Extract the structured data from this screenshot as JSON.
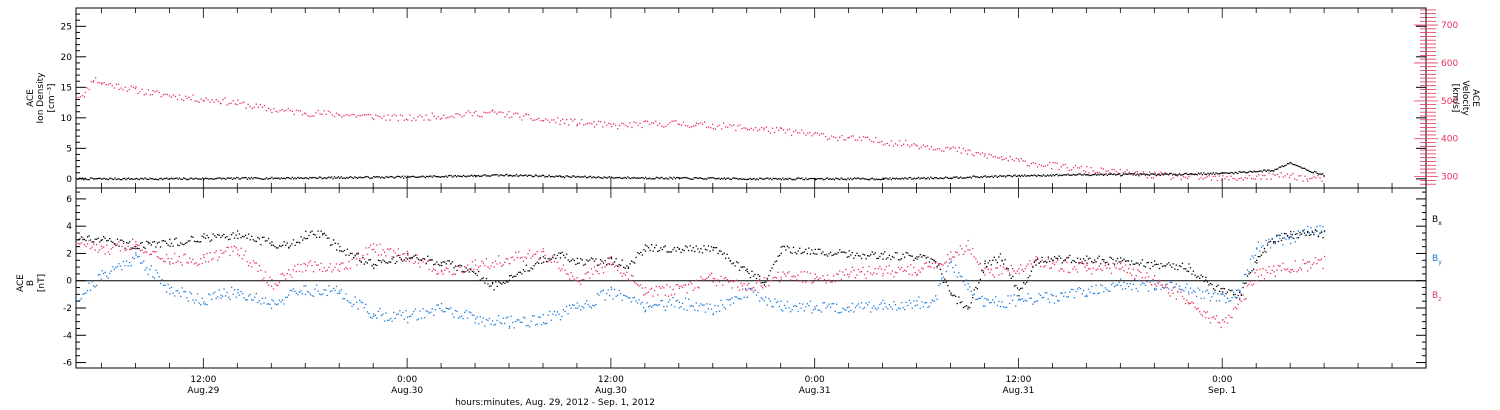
{
  "colors": {
    "black": "#000000",
    "red": "#e8315c",
    "blue": "#1a7ad9"
  },
  "x_axis": {
    "footer": "hours:minutes, Aug. 29, 2012 - Sep.  1, 2012",
    "ticks": [
      {
        "x": 12,
        "time": "12:00",
        "date": "Aug.29"
      },
      {
        "x": 24,
        "time": "0:00",
        "date": "Aug.30"
      },
      {
        "x": 36,
        "time": "12:00",
        "date": "Aug.30"
      },
      {
        "x": 48,
        "time": "0:00",
        "date": "Aug.31"
      },
      {
        "x": 60,
        "time": "12:00",
        "date": "Aug.31"
      },
      {
        "x": 72,
        "time": "0:00",
        "date": "Sep. 1"
      }
    ]
  },
  "chart_data": [
    {
      "type": "scatter",
      "x_unit": "hours since 2012-08-29 00:00",
      "xlim": [
        4.5,
        84
      ],
      "left_axis": {
        "label_lines": [
          "ACE",
          "Ion Density",
          "[cm⁻³]"
        ],
        "ylim": [
          -1.5,
          28
        ],
        "ticks": [
          0,
          5,
          10,
          15,
          20,
          25
        ],
        "color": "#000000"
      },
      "right_axis": {
        "label_lines": [
          "ACE",
          "Velocity",
          "[km/s]"
        ],
        "ylim": [
          270,
          745
        ],
        "ticks": [
          300,
          400,
          500,
          600,
          700
        ],
        "color": "#e8315c"
      },
      "series": [
        {
          "name": "Ion Density",
          "axis": "left",
          "color": "#000000",
          "points": [
            [
              4.6,
              0.1
            ],
            [
              10,
              0.1
            ],
            [
              16,
              0.2
            ],
            [
              20,
              0.3
            ],
            [
              24,
              0.4
            ],
            [
              28,
              0.6
            ],
            [
              30,
              0.7
            ],
            [
              33,
              0.5
            ],
            [
              36,
              0.3
            ],
            [
              40,
              0.2
            ],
            [
              44,
              0.1
            ],
            [
              48,
              0.1
            ],
            [
              52,
              0.1
            ],
            [
              56,
              0.3
            ],
            [
              60,
              0.6
            ],
            [
              64,
              0.8
            ],
            [
              68,
              0.8
            ],
            [
              72,
              1.0
            ],
            [
              75,
              1.5
            ],
            [
              76,
              2.8
            ],
            [
              77,
              1.5
            ],
            [
              78,
              0.7
            ]
          ]
        },
        {
          "name": "Velocity",
          "axis": "right",
          "color": "#e8315c",
          "points": [
            [
              4.6,
              515
            ],
            [
              5,
              520
            ],
            [
              5.5,
              560
            ],
            [
              6,
              548
            ],
            [
              7,
              540
            ],
            [
              8,
              530
            ],
            [
              9,
              522
            ],
            [
              11,
              510
            ],
            [
              12,
              505
            ],
            [
              13,
              502
            ],
            [
              14,
              495
            ],
            [
              16,
              478
            ],
            [
              18,
              470
            ],
            [
              20,
              466
            ],
            [
              22,
              460
            ],
            [
              24,
              455
            ],
            [
              26,
              462
            ],
            [
              28,
              468
            ],
            [
              29,
              470
            ],
            [
              30,
              465
            ],
            [
              31,
              458
            ],
            [
              32,
              450
            ],
            [
              33,
              448
            ],
            [
              34,
              444
            ],
            [
              35,
              440
            ],
            [
              36,
              435
            ],
            [
              38,
              440
            ],
            [
              40,
              442
            ],
            [
              41,
              438
            ],
            [
              42,
              436
            ],
            [
              44,
              430
            ],
            [
              45,
              426
            ],
            [
              46,
              422
            ],
            [
              48,
              412
            ],
            [
              50,
              402
            ],
            [
              52,
              394
            ],
            [
              54,
              385
            ],
            [
              56,
              375
            ],
            [
              57,
              365
            ],
            [
              58,
              358
            ],
            [
              59,
              350
            ],
            [
              60,
              342
            ],
            [
              62,
              330
            ],
            [
              64,
              320
            ],
            [
              65,
              315
            ],
            [
              66,
              312
            ],
            [
              68,
              305
            ],
            [
              70,
              300
            ],
            [
              72,
              296
            ],
            [
              74,
              300
            ],
            [
              76,
              305
            ],
            [
              77,
              295
            ],
            [
              78,
              297
            ]
          ]
        }
      ]
    },
    {
      "type": "scatter",
      "x_unit": "hours since 2012-08-29 00:00",
      "xlim": [
        4.5,
        84
      ],
      "axis": {
        "label_lines": [
          "ACE",
          "B",
          "[nT]"
        ],
        "ylim": [
          -6.4,
          6.8
        ],
        "ticks": [
          -6,
          -4,
          -2,
          0,
          2,
          4,
          6
        ]
      },
      "legend": [
        {
          "main": "B",
          "sub": "x",
          "color": "#000000"
        },
        {
          "main": "B",
          "sub": "y",
          "color": "#1a7ad9"
        },
        {
          "main": "B",
          "sub": "z",
          "color": "#e8315c"
        }
      ],
      "series": [
        {
          "name": "Bx",
          "color": "#000000",
          "points": [
            [
              4.6,
              3.2
            ],
            [
              6,
              3.0
            ],
            [
              8,
              2.6
            ],
            [
              10,
              2.8
            ],
            [
              12,
              3.2
            ],
            [
              14,
              3.4
            ],
            [
              16,
              2.8
            ],
            [
              17,
              2.6
            ],
            [
              18,
              3.4
            ],
            [
              19,
              3.4
            ],
            [
              20,
              2.4
            ],
            [
              22,
              1.2
            ],
            [
              24,
              1.8
            ],
            [
              26,
              1.4
            ],
            [
              28,
              0.6
            ],
            [
              29,
              -0.4
            ],
            [
              30,
              0.2
            ],
            [
              32,
              1.6
            ],
            [
              33,
              2.0
            ],
            [
              34,
              1.4
            ],
            [
              36,
              1.5
            ],
            [
              37,
              1.2
            ],
            [
              38,
              2.4
            ],
            [
              40,
              2.4
            ],
            [
              42,
              2.3
            ],
            [
              43,
              1.6
            ],
            [
              44,
              0.6
            ],
            [
              45,
              0.0
            ],
            [
              46,
              2.3
            ],
            [
              48,
              2.2
            ],
            [
              50,
              2.0
            ],
            [
              52,
              1.9
            ],
            [
              54,
              1.8
            ],
            [
              55,
              1.6
            ],
            [
              56,
              -1.0
            ],
            [
              57,
              -2.0
            ],
            [
              58,
              1.2
            ],
            [
              59,
              1.8
            ],
            [
              60,
              -0.8
            ],
            [
              61,
              1.4
            ],
            [
              62,
              1.6
            ],
            [
              64,
              1.6
            ],
            [
              66,
              1.5
            ],
            [
              68,
              1.2
            ],
            [
              70,
              1.0
            ],
            [
              71,
              0.0
            ],
            [
              72,
              -0.8
            ],
            [
              73,
              -1.0
            ],
            [
              74,
              1.6
            ],
            [
              75,
              3.0
            ],
            [
              76,
              3.4
            ],
            [
              77,
              3.6
            ],
            [
              78,
              3.4
            ]
          ]
        },
        {
          "name": "By",
          "color": "#1a7ad9",
          "points": [
            [
              4.6,
              -1.2
            ],
            [
              6,
              0.4
            ],
            [
              8,
              1.8
            ],
            [
              10,
              -0.6
            ],
            [
              12,
              -1.4
            ],
            [
              13,
              -1.0
            ],
            [
              14,
              -0.8
            ],
            [
              16,
              -1.6
            ],
            [
              18,
              -0.6
            ],
            [
              20,
              -0.8
            ],
            [
              22,
              -2.4
            ],
            [
              24,
              -2.6
            ],
            [
              26,
              -2.0
            ],
            [
              28,
              -2.8
            ],
            [
              30,
              -3.0
            ],
            [
              32,
              -2.8
            ],
            [
              34,
              -2.0
            ],
            [
              36,
              -0.8
            ],
            [
              38,
              -1.8
            ],
            [
              40,
              -1.6
            ],
            [
              42,
              -2.0
            ],
            [
              43,
              -1.4
            ],
            [
              44,
              -0.8
            ],
            [
              46,
              -1.8
            ],
            [
              48,
              -1.9
            ],
            [
              50,
              -1.9
            ],
            [
              52,
              -1.8
            ],
            [
              54,
              -1.6
            ],
            [
              55,
              -1.4
            ],
            [
              56,
              1.2
            ],
            [
              57,
              -0.4
            ],
            [
              58,
              -1.6
            ],
            [
              60,
              -1.4
            ],
            [
              62,
              -1.2
            ],
            [
              64,
              -0.8
            ],
            [
              66,
              -0.2
            ],
            [
              68,
              -0.4
            ],
            [
              70,
              -0.6
            ],
            [
              72,
              -1.2
            ],
            [
              73,
              -0.8
            ],
            [
              74,
              2.4
            ],
            [
              75,
              3.0
            ],
            [
              76,
              3.2
            ],
            [
              77,
              3.6
            ],
            [
              78,
              3.8
            ]
          ]
        },
        {
          "name": "Bz",
          "color": "#e8315c",
          "points": [
            [
              4.6,
              3.0
            ],
            [
              6,
              2.2
            ],
            [
              8,
              2.8
            ],
            [
              10,
              1.6
            ],
            [
              12,
              1.6
            ],
            [
              14,
              2.4
            ],
            [
              16,
              -0.2
            ],
            [
              18,
              1.2
            ],
            [
              20,
              1.0
            ],
            [
              21,
              1.6
            ],
            [
              22,
              2.4
            ],
            [
              24,
              1.8
            ],
            [
              26,
              0.8
            ],
            [
              28,
              1.2
            ],
            [
              30,
              1.6
            ],
            [
              32,
              2.0
            ],
            [
              34,
              0.0
            ],
            [
              36,
              1.4
            ],
            [
              38,
              -0.8
            ],
            [
              40,
              -0.6
            ],
            [
              42,
              0.2
            ],
            [
              44,
              -0.6
            ],
            [
              46,
              0.4
            ],
            [
              48,
              0.2
            ],
            [
              50,
              0.6
            ],
            [
              52,
              0.7
            ],
            [
              54,
              0.8
            ],
            [
              56,
              1.8
            ],
            [
              57,
              2.6
            ],
            [
              58,
              0.6
            ],
            [
              60,
              0.8
            ],
            [
              61,
              1.6
            ],
            [
              62,
              1.2
            ],
            [
              64,
              1.0
            ],
            [
              66,
              1.0
            ],
            [
              68,
              0.0
            ],
            [
              70,
              -1.4
            ],
            [
              71,
              -2.6
            ],
            [
              72,
              -3.0
            ],
            [
              73,
              -1.6
            ],
            [
              74,
              0.4
            ],
            [
              75,
              0.8
            ],
            [
              76,
              1.0
            ],
            [
              77,
              1.2
            ],
            [
              78,
              1.4
            ]
          ]
        }
      ]
    }
  ]
}
